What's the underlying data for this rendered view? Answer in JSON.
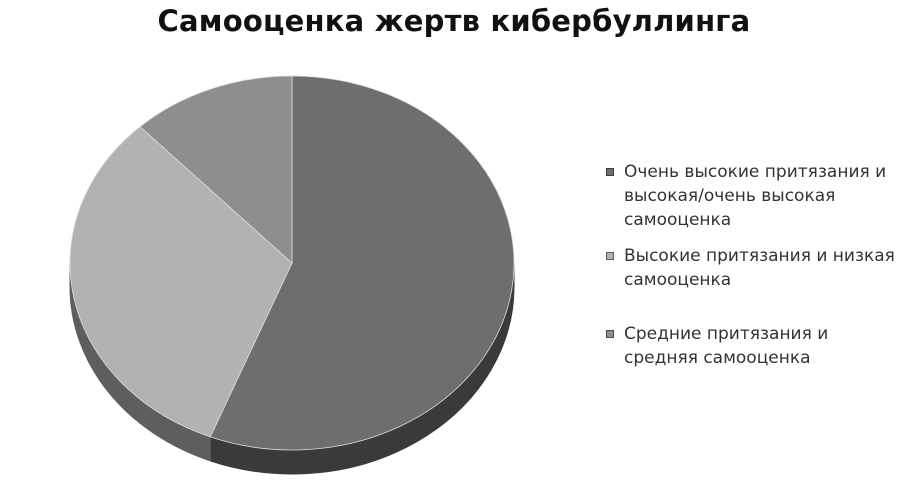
{
  "chart_data": {
    "type": "pie",
    "title": "Самооценка жертв кибербуллинга",
    "slices": [
      {
        "label": "Очень высокие притязания и высокая/очень высокая самооценка",
        "value": 56,
        "color": "#6e6e6e",
        "side_color": "#3a3a3a"
      },
      {
        "label": "Высокие притязания и низкая самооценка",
        "value": 32,
        "color": "#b2b2b2",
        "side_color": "#5e5e5e"
      },
      {
        "label": "Средние притязания и средняя самооценка",
        "value": 12,
        "color": "#8e8e8e",
        "side_color": "#4a4a4a"
      }
    ],
    "legend_position": "right",
    "style": "3d"
  }
}
